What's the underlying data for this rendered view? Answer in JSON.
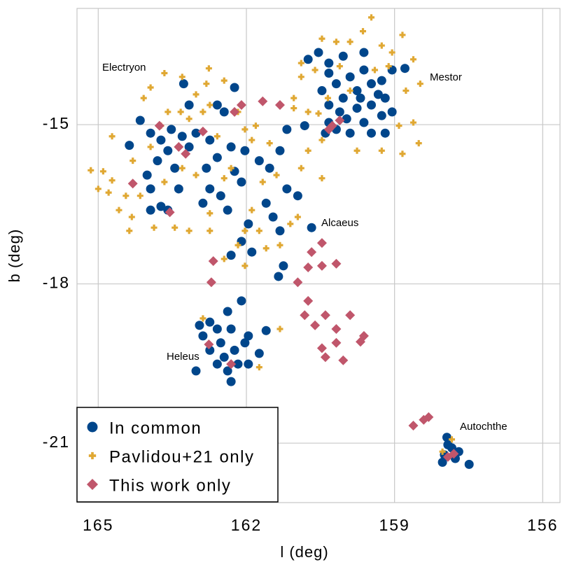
{
  "chart_data": {
    "type": "scatter",
    "x_label": "l (deg)",
    "y_label": "b (deg)",
    "xlim": [
      165.43,
      155.65
    ],
    "ylim": [
      -22.12,
      -12.81
    ],
    "xticks": [
      165,
      162,
      159,
      156
    ],
    "yticks": [
      -15,
      -18,
      -21
    ],
    "grid": true,
    "legend": "lower left",
    "annotations": [
      "Electryon",
      "Mestor",
      "Alcaeus",
      "Heleus",
      "Autochthe"
    ],
    "series": [
      {
        "name": "In common",
        "color": "#00468b",
        "marker": "circle",
        "x": [
          164.15,
          163.94,
          164.37,
          163.73,
          163.52,
          163.3,
          163.59,
          163.16,
          163.8,
          163.45,
          163.02,
          162.74,
          162.59,
          162.31,
          162.81,
          162.74,
          162.88,
          162.52,
          162.38,
          162.24,
          162.1,
          162.45,
          162.24,
          163.27,
          162.59,
          163.16,
          164.01,
          163.94,
          163.73,
          163.37,
          163.94,
          163.59,
          162.03,
          161.74,
          161.96,
          162.1,
          162.31,
          161.89,
          161.53,
          161.32,
          161.18,
          160.96,
          161.6,
          161.32,
          161.46,
          161.25,
          161.35,
          161.18,
          160.82,
          160.68,
          160.75,
          160.54,
          160.33,
          160.04,
          159.62,
          159.9,
          160.18,
          160.47,
          160.33,
          160.04,
          159.76,
          159.47,
          159.26,
          159.05,
          158.79,
          159.19,
          159.47,
          159.76,
          159.97,
          160.18,
          160.33,
          159.62,
          159.26,
          159.05,
          159.19,
          159.47,
          159.9,
          160.4,
          159.62,
          159.33,
          159.69,
          160.33,
          160.11,
          162.95,
          162.74,
          162.59,
          162.38,
          162.1,
          162.31,
          162.52,
          162.74,
          162.45,
          162.24,
          162.03,
          162.17,
          162.38,
          162.31,
          162.59,
          163.02,
          161.74,
          161.96,
          161.6,
          161.96,
          162.88,
          157.94,
          157.84,
          157.99,
          157.77,
          157.49,
          158.03,
          157.7,
          157.92
        ],
        "values": [
          -14.92,
          -15.16,
          -15.39,
          -15.29,
          -15.09,
          -15.22,
          -15.49,
          -15.42,
          -15.68,
          -15.82,
          -15.16,
          -15.29,
          -15.62,
          -15.42,
          -15.82,
          -16.21,
          -16.48,
          -16.34,
          -16.61,
          -15.88,
          -16.08,
          -14.76,
          -14.3,
          -14.23,
          -14.63,
          -14.63,
          -15.95,
          -16.21,
          -16.54,
          -16.21,
          -16.61,
          -16.61,
          -15.49,
          -15.68,
          -16.87,
          -17.2,
          -17.46,
          -17.4,
          -15.82,
          -15.49,
          -16.21,
          -16.34,
          -16.48,
          -17.0,
          -16.74,
          -17.66,
          -17.86,
          -15.09,
          -15.02,
          -16.94,
          -13.77,
          -13.64,
          -13.84,
          -13.71,
          -13.64,
          -14.1,
          -14.23,
          -14.36,
          -14.63,
          -14.5,
          -14.36,
          -14.23,
          -14.17,
          -13.97,
          -13.94,
          -14.5,
          -14.63,
          -14.69,
          -14.89,
          -15.09,
          -14.96,
          -14.96,
          -14.83,
          -14.76,
          -15.16,
          -15.16,
          -15.16,
          -15.16,
          -13.97,
          -14.43,
          -14.5,
          -14.03,
          -14.76,
          -18.78,
          -18.72,
          -18.85,
          -18.52,
          -18.32,
          -18.85,
          -19.11,
          -19.25,
          -19.38,
          -19.25,
          -19.11,
          -19.51,
          -19.64,
          -19.84,
          -19.51,
          -19.64,
          -19.31,
          -19.51,
          -18.88,
          -18.98,
          -18.98,
          -20.89,
          -21.09,
          -21.22,
          -21.29,
          -21.4,
          -21.36,
          -21.16,
          -21.03
        ]
      },
      {
        "name": "Pavlidou+21 only",
        "color": "#e0a833",
        "marker": "plus",
        "x": [
          165.15,
          164.9,
          164.72,
          164.72,
          164.58,
          164.32,
          164.15,
          164.3,
          164.08,
          163.94,
          163.66,
          163.3,
          163.02,
          163.59,
          163.33,
          162.88,
          162.74,
          162.76,
          162.45,
          162.17,
          162.03,
          161.89,
          162.59,
          162.31,
          161.81,
          161.53,
          161.67,
          161.89,
          162.03,
          162.17,
          162.03,
          162.45,
          162.74,
          163.16,
          163.87,
          164.44,
          164.79,
          165.0,
          164.37,
          163.66,
          163.3,
          163.02,
          163.45,
          162.74,
          162.45,
          161.74,
          161.32,
          161.11,
          160.89,
          160.75,
          160.47,
          161.04,
          160.75,
          161.04,
          160.89,
          160.61,
          160.47,
          160.18,
          159.9,
          159.64,
          159.47,
          159.26,
          159.05,
          158.84,
          158.62,
          158.48,
          158.51,
          158.84,
          158.91,
          158.77,
          159.12,
          159.4,
          160.11,
          159.9,
          160.35,
          160.89,
          161.32,
          162.88,
          162.31,
          161.74,
          162.81,
          163.16,
          163.94,
          163.73,
          161.39,
          160.96,
          160.47,
          159.26,
          158.62,
          159.76,
          160.54,
          161.6,
          158.03,
          157.84
        ],
        "values": [
          -15.86,
          -15.88,
          -15.22,
          -16.05,
          -16.61,
          -16.74,
          -16.34,
          -15.68,
          -14.5,
          -14.3,
          -14.03,
          -14.1,
          -14.43,
          -14.76,
          -14.76,
          -14.76,
          -14.63,
          -13.94,
          -14.17,
          -14.76,
          -15.09,
          -15.29,
          -15.22,
          -15.82,
          -15.02,
          -15.35,
          -16.08,
          -16.61,
          -17.0,
          -17.27,
          -17.66,
          -17.53,
          -17.0,
          -17.0,
          -16.94,
          -16.34,
          -16.28,
          -16.21,
          -17.0,
          -16.08,
          -15.82,
          -15.95,
          -16.94,
          -16.67,
          -16.01,
          -17.0,
          -17.27,
          -16.87,
          -15.82,
          -15.49,
          -16.01,
          -14.69,
          -14.76,
          -14.5,
          -14.1,
          -13.97,
          -13.38,
          -13.44,
          -13.44,
          -13.24,
          -12.98,
          -13.51,
          -13.64,
          -13.31,
          -13.77,
          -14.23,
          -15.35,
          -15.55,
          -15.02,
          -14.36,
          -13.9,
          -13.97,
          -13.9,
          -14.36,
          -14.5,
          -13.84,
          -18.85,
          -18.65,
          -19.51,
          -19.57,
          -14.23,
          -14.89,
          -15.42,
          -15.02,
          -15.95,
          -16.74,
          -15.29,
          -15.49,
          -14.96,
          -15.49,
          -14.79,
          -17.33,
          -21.16,
          -20.93
        ]
      },
      {
        "name": "This work only",
        "color": "#c0566b",
        "marker": "diamond",
        "x": [
          164.3,
          163.55,
          163.23,
          163.76,
          163.37,
          162.88,
          162.1,
          161.67,
          161.32,
          162.24,
          162.67,
          162.71,
          160.96,
          160.75,
          160.47,
          160.18,
          160.47,
          160.68,
          160.82,
          160.61,
          160.4,
          160.18,
          159.9,
          160.47,
          160.18,
          160.04,
          160.4,
          159.69,
          159.62,
          162.76,
          162.31,
          158.62,
          158.41,
          158.31,
          157.92,
          157.8,
          160.26,
          160.11,
          160.33,
          160.75
        ],
        "values": [
          -16.11,
          -16.65,
          -15.55,
          -15.02,
          -15.42,
          -15.13,
          -14.63,
          -14.56,
          -14.63,
          -14.76,
          -17.57,
          -17.97,
          -17.97,
          -17.69,
          -17.66,
          -17.62,
          -17.23,
          -17.4,
          -18.59,
          -18.78,
          -18.59,
          -18.85,
          -18.59,
          -19.21,
          -19.11,
          -19.44,
          -19.38,
          -19.09,
          -18.98,
          -19.14,
          -19.51,
          -20.67,
          -20.56,
          -20.51,
          -21.26,
          -21.2,
          -15.02,
          -14.92,
          -15.09,
          -18.32
        ]
      }
    ]
  }
}
